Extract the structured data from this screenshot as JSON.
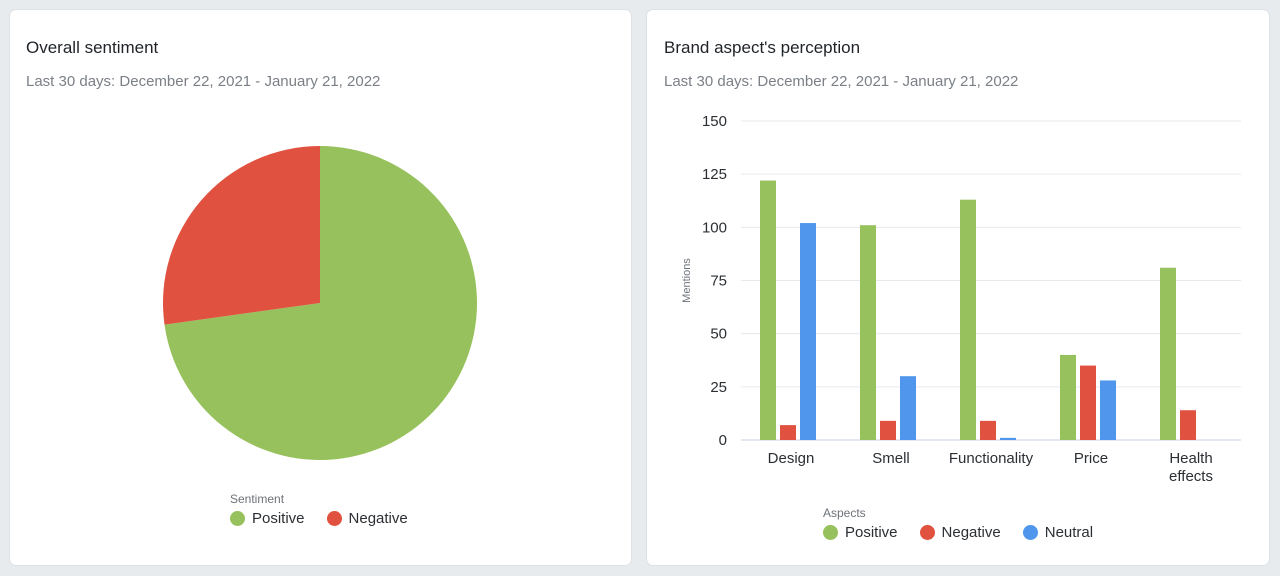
{
  "colors": {
    "positive": "#97c15c",
    "negative": "#e05140",
    "neutral": "#4f96ec",
    "grid": "#e8eaed",
    "axis": "#c9d2e8"
  },
  "left_card": {
    "title": "Overall sentiment",
    "subtitle": "Last 30 days: December 22, 2021 - January 21, 2022",
    "legend_title": "Sentiment",
    "legend": [
      {
        "label": "Positive",
        "color": "#97c15c"
      },
      {
        "label": "Negative",
        "color": "#e05140"
      }
    ]
  },
  "right_card": {
    "title": "Brand aspect's perception",
    "subtitle": "Last 30 days: December 22, 2021 - January 21, 2022",
    "legend_title": "Aspects",
    "legend": [
      {
        "label": "Positive",
        "color": "#97c15c"
      },
      {
        "label": "Negative",
        "color": "#e05140"
      },
      {
        "label": "Neutral",
        "color": "#4f96ec"
      }
    ]
  },
  "chart_data": [
    {
      "type": "pie",
      "title": "Overall sentiment",
      "legend_title": "Sentiment",
      "slices": [
        {
          "label": "Positive",
          "value": 72.8,
          "color": "#97c15c"
        },
        {
          "label": "Negative",
          "value": 27.2,
          "color": "#e05140"
        }
      ]
    },
    {
      "type": "bar",
      "title": "Brand aspect's perception",
      "xlabel": "Aspects",
      "ylabel": "Mentions",
      "ylim": [
        0,
        150
      ],
      "yticks": [
        0,
        25,
        50,
        75,
        100,
        125,
        150
      ],
      "categories": [
        "Design",
        "Smell",
        "Functionality",
        "Price",
        "Health effects"
      ],
      "series": [
        {
          "name": "Positive",
          "color": "#97c15c",
          "values": [
            122,
            101,
            113,
            40,
            81
          ]
        },
        {
          "name": "Negative",
          "color": "#e05140",
          "values": [
            7,
            9,
            9,
            35,
            14
          ]
        },
        {
          "name": "Neutral",
          "color": "#4f96ec",
          "values": [
            102,
            30,
            1,
            28,
            0
          ]
        }
      ]
    }
  ]
}
